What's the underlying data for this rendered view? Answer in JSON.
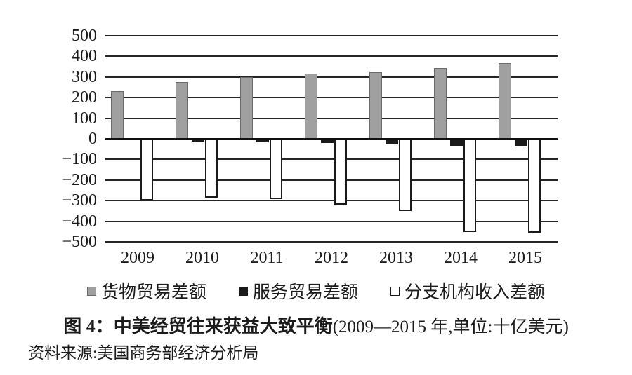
{
  "figure": {
    "title_bold": "图 4：中美经贸往来获益大致平衡",
    "title_paren": "(2009—2015 年,单位:十亿美元)",
    "source": "资料来源:美国商务部经济分析局"
  },
  "chart_data": {
    "type": "bar",
    "title": "中美经贸往来获益大致平衡",
    "unit": "十亿美元",
    "categories": [
      "2009",
      "2010",
      "2011",
      "2012",
      "2013",
      "2014",
      "2015"
    ],
    "series": [
      {
        "key": "goods",
        "name": "货物贸易差额",
        "color": "#a0a0a0",
        "border": "#6a6a6a",
        "values": [
          230,
          275,
          300,
          317,
          323,
          343,
          367
        ]
      },
      {
        "key": "services",
        "name": "服务贸易差额",
        "color": "#1b1b1b",
        "border": "#1b1b1b",
        "values": [
          -7,
          -13,
          -18,
          -22,
          -27,
          -33,
          -36
        ]
      },
      {
        "key": "branch-income",
        "name": "分支机构收入差额",
        "color": "#ffffff",
        "border": "#1b1b1b",
        "values": [
          -298,
          -287,
          -294,
          -320,
          -350,
          -452,
          -456
        ]
      }
    ],
    "ylim": [
      -500,
      500
    ],
    "ytick_step": 100,
    "yticks": [
      "500",
      "400",
      "300",
      "200",
      "100",
      "0",
      "−100",
      "−200",
      "−300",
      "−400",
      "−500"
    ],
    "grid": true,
    "legend_position": "bottom"
  }
}
